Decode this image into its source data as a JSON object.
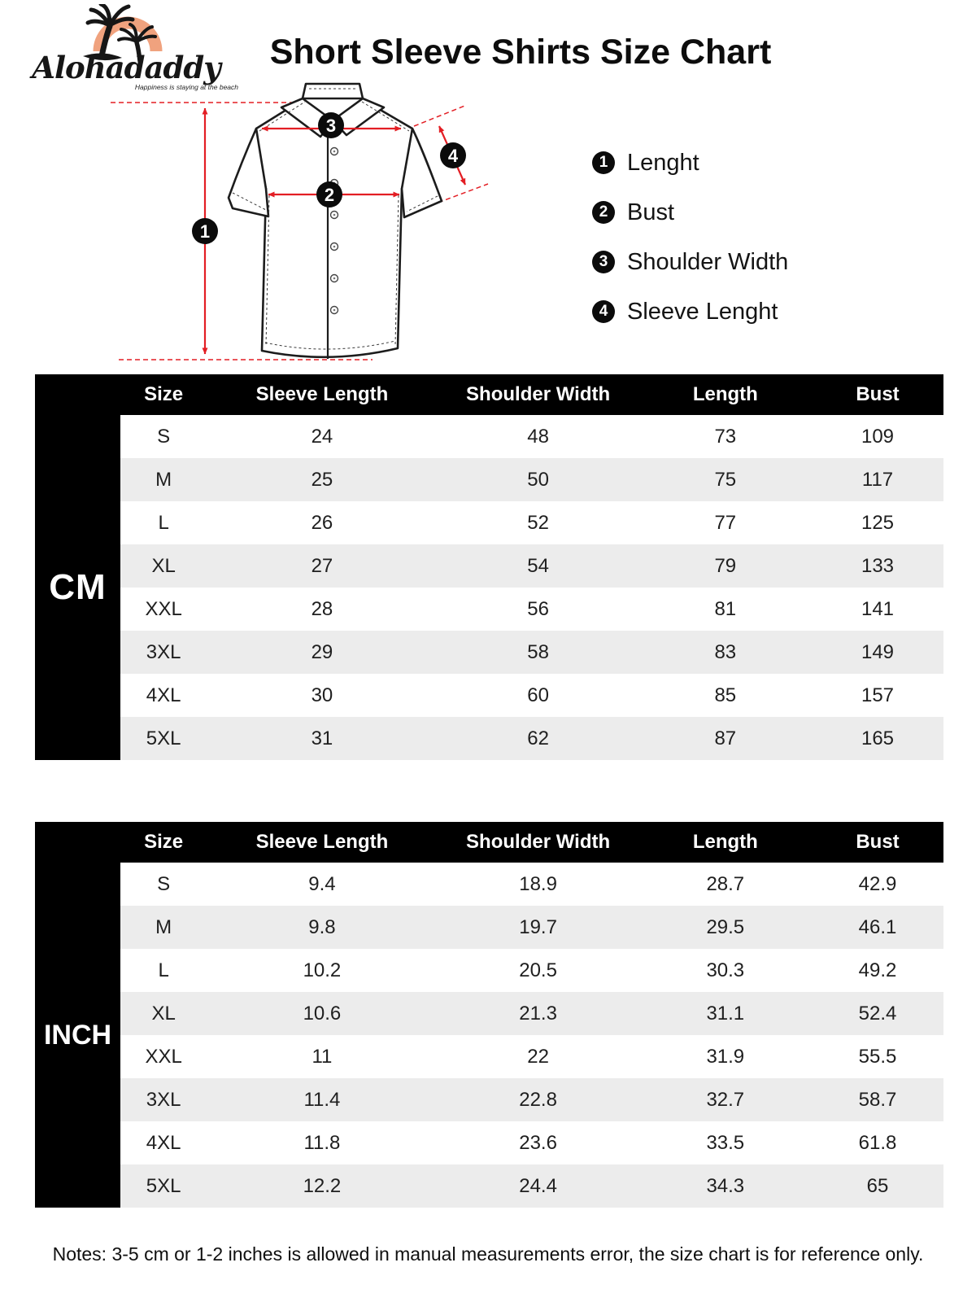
{
  "logo": {
    "brand": "Alohadaddy",
    "tagline": "Happiness is staying at the beach"
  },
  "title": "Short Sleeve Shirts Size Chart",
  "diagram": {
    "badges": [
      "1",
      "2",
      "3",
      "4"
    ]
  },
  "legend": {
    "items": [
      {
        "num": "1",
        "label": "Lenght"
      },
      {
        "num": "2",
        "label": "Bust"
      },
      {
        "num": "3",
        "label": "Shoulder Width"
      },
      {
        "num": "4",
        "label": "Sleeve Lenght"
      }
    ]
  },
  "tables": [
    {
      "unit": "CM",
      "headers": [
        "Size",
        "Sleeve Length",
        "Shoulder Width",
        "Length",
        "Bust"
      ],
      "rows": [
        [
          "S",
          "24",
          "48",
          "73",
          "109"
        ],
        [
          "M",
          "25",
          "50",
          "75",
          "117"
        ],
        [
          "L",
          "26",
          "52",
          "77",
          "125"
        ],
        [
          "XL",
          "27",
          "54",
          "79",
          "133"
        ],
        [
          "XXL",
          "28",
          "56",
          "81",
          "141"
        ],
        [
          "3XL",
          "29",
          "58",
          "83",
          "149"
        ],
        [
          "4XL",
          "30",
          "60",
          "85",
          "157"
        ],
        [
          "5XL",
          "31",
          "62",
          "87",
          "165"
        ]
      ]
    },
    {
      "unit": "INCH",
      "headers": [
        "Size",
        "Sleeve Length",
        "Shoulder Width",
        "Length",
        "Bust"
      ],
      "rows": [
        [
          "S",
          "9.4",
          "18.9",
          "28.7",
          "42.9"
        ],
        [
          "M",
          "9.8",
          "19.7",
          "29.5",
          "46.1"
        ],
        [
          "L",
          "10.2",
          "20.5",
          "30.3",
          "49.2"
        ],
        [
          "XL",
          "10.6",
          "21.3",
          "31.1",
          "52.4"
        ],
        [
          "XXL",
          "11",
          "22",
          "31.9",
          "55.5"
        ],
        [
          "3XL",
          "11.4",
          "22.8",
          "32.7",
          "58.7"
        ],
        [
          "4XL",
          "11.8",
          "23.6",
          "33.5",
          "61.8"
        ],
        [
          "5XL",
          "12.2",
          "24.4",
          "34.3",
          "65"
        ]
      ]
    }
  ],
  "notes": "Notes: 3-5 cm or 1-2 inches is allowed in manual measurements error, the size chart is for reference only.",
  "colors": {
    "accent_red": "#e31e24",
    "table_black": "#000000",
    "row_stripe": "#ececec",
    "logo_arc": "#f0a27e"
  }
}
